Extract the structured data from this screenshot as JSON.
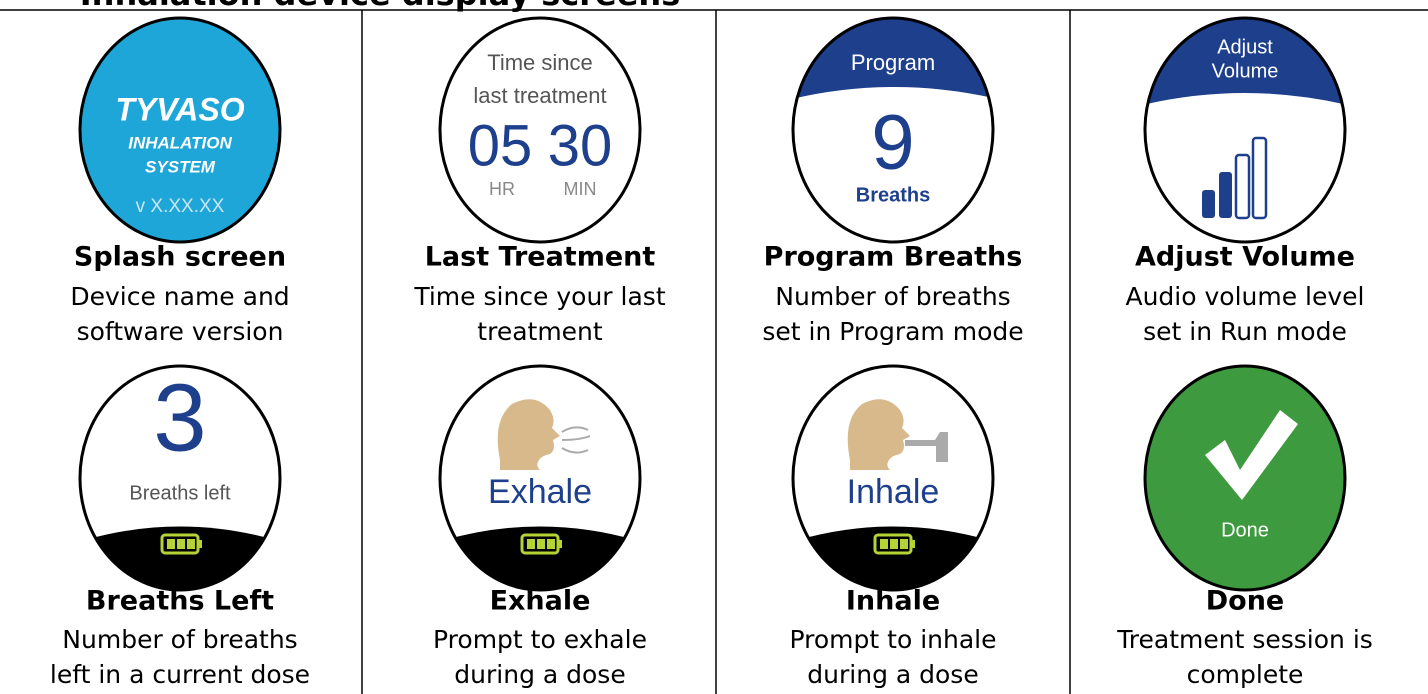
{
  "title": "Inhalation device display screens",
  "screens": [
    {
      "screen_text": [
        "TYVASO",
        "INHALATION",
        "SYSTEM",
        "v X.XX.XX"
      ],
      "label": "Splash screen",
      "description": [
        "Device name and",
        "software version"
      ]
    },
    {
      "screen_text": [
        "Time since",
        "last treatment",
        "05",
        "30",
        "HR",
        "MIN"
      ],
      "label": "Last Treatment",
      "description": [
        "Time since your last",
        "treatment"
      ]
    },
    {
      "screen_text": [
        "Program",
        "9",
        "Breaths"
      ],
      "label": "Program Breaths",
      "description": [
        "Number of breaths",
        "set in Program mode"
      ]
    },
    {
      "screen_text": [
        "Adjust",
        "Volume"
      ],
      "label": "Adjust Volume",
      "description": [
        "Audio volume level",
        "set in Run mode"
      ]
    },
    {
      "screen_text": [
        "3",
        "Breaths left"
      ],
      "label": "Breaths Left",
      "description": [
        "Number of breaths",
        "left in a current dose"
      ]
    },
    {
      "screen_text": [
        "Exhale"
      ],
      "label": "Exhale",
      "description": [
        "Prompt to exhale",
        "during a dose"
      ]
    },
    {
      "screen_text": [
        "Inhale"
      ],
      "label": "Inhale",
      "description": [
        "Prompt to inhale",
        "during a dose"
      ]
    },
    {
      "screen_text": [
        "Done"
      ],
      "label": "Done",
      "description": [
        "Treatment session is",
        "complete"
      ]
    }
  ]
}
